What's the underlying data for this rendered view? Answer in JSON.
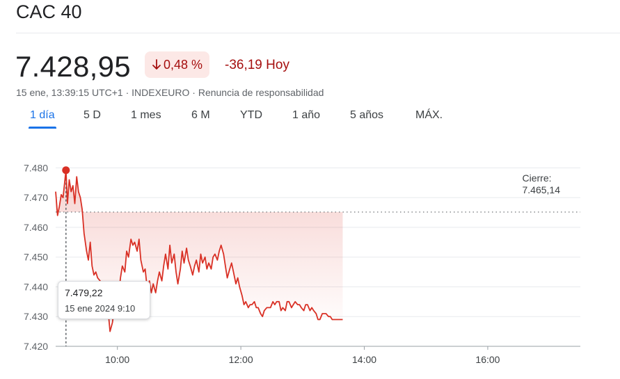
{
  "header": {
    "title": "CAC 40",
    "price": "7.428,95",
    "change_pct": "0,48 %",
    "change_abs": "-36,19 Hoy",
    "meta": "15 ene, 13:39:15 UTC+1 · INDEXEURO · Renuncia de responsabilidad"
  },
  "tabs": [
    {
      "label": "1 día",
      "active": true
    },
    {
      "label": "5 D",
      "active": false
    },
    {
      "label": "1 mes",
      "active": false
    },
    {
      "label": "6 M",
      "active": false
    },
    {
      "label": "YTD",
      "active": false
    },
    {
      "label": "1 año",
      "active": false
    },
    {
      "label": "5 años",
      "active": false
    },
    {
      "label": "MÁX.",
      "active": false
    }
  ],
  "tooltip": {
    "value": "7.479,22",
    "date": "15 ene 2024 9:10"
  },
  "close": {
    "label": "Cierre:",
    "value": "7.465,14"
  },
  "colors": {
    "line": "#d93025",
    "accent": "#1a73e8",
    "negative": "#a50e0e",
    "badge_bg": "#fce8e6"
  },
  "chart_data": {
    "type": "line",
    "x_unit": "hours",
    "xlim": [
      9.0,
      17.5
    ],
    "ylim": [
      7420,
      7485
    ],
    "x_ticks": [
      10,
      12,
      14,
      16
    ],
    "x_tick_labels": [
      "10:00",
      "12:00",
      "14:00",
      "16:00"
    ],
    "y_ticks": [
      7420,
      7430,
      7440,
      7450,
      7460,
      7470,
      7480
    ],
    "y_tick_labels": [
      "7.420",
      "7.430",
      "7.440",
      "7.450",
      "7.460",
      "7.470",
      "7.480"
    ],
    "previous_close": 7465.14,
    "highlight_point": {
      "x": 9.1667,
      "y": 7479.22
    },
    "grid": true,
    "series": [
      {
        "x": [
          9.0,
          9.03,
          9.06,
          9.09,
          9.12,
          9.1667,
          9.19,
          9.22,
          9.25,
          9.28,
          9.31,
          9.34,
          9.37,
          9.4,
          9.43,
          9.46,
          9.5,
          9.53,
          9.56,
          9.59,
          9.62,
          9.65,
          9.68,
          9.72,
          9.75,
          9.78,
          9.82,
          9.85,
          9.88,
          9.92,
          9.95,
          9.98,
          10.02,
          10.05,
          10.08,
          10.12,
          10.15,
          10.18,
          10.22,
          10.25,
          10.28,
          10.32,
          10.35,
          10.38,
          10.42,
          10.45,
          10.48,
          10.52,
          10.55,
          10.58,
          10.62,
          10.65,
          10.68,
          10.72,
          10.75,
          10.78,
          10.82,
          10.85,
          10.88,
          10.92,
          10.95,
          10.98,
          11.02,
          11.05,
          11.08,
          11.12,
          11.15,
          11.18,
          11.22,
          11.25,
          11.28,
          11.32,
          11.35,
          11.38,
          11.42,
          11.45,
          11.48,
          11.52,
          11.55,
          11.58,
          11.62,
          11.65,
          11.68,
          11.72,
          11.75,
          11.78,
          11.82,
          11.85,
          11.88,
          11.92,
          11.95,
          11.98,
          12.02,
          12.05,
          12.08,
          12.12,
          12.15,
          12.18,
          12.22,
          12.25,
          12.28,
          12.32,
          12.35,
          12.38,
          12.42,
          12.45,
          12.48,
          12.52,
          12.55,
          12.58,
          12.62,
          12.65,
          12.68,
          12.72,
          12.75,
          12.78,
          12.82,
          12.85,
          12.88,
          12.92,
          12.95,
          12.98,
          13.02,
          13.05,
          13.08,
          13.12,
          13.15,
          13.18,
          13.22,
          13.25,
          13.28,
          13.32,
          13.35,
          13.38,
          13.42,
          13.45,
          13.48,
          13.52,
          13.55,
          13.58,
          13.62,
          13.65
        ],
        "y": [
          7472,
          7464,
          7467,
          7471,
          7470,
          7479.2,
          7468,
          7476,
          7472,
          7474,
          7468,
          7477,
          7472,
          7470,
          7466,
          7458,
          7452,
          7449,
          7455,
          7447,
          7444,
          7445,
          7443,
          7442,
          7438,
          7436,
          7431,
          7432,
          7425,
          7428,
          7433,
          7430,
          7437,
          7443,
          7447,
          7445,
          7452,
          7450,
          7456,
          7454,
          7455,
          7452,
          7456,
          7449,
          7445,
          7446,
          7440,
          7442,
          7438,
          7441,
          7438,
          7442,
          7445,
          7442,
          7447,
          7451,
          7446,
          7454,
          7448,
          7451,
          7445,
          7441,
          7446,
          7452,
          7448,
          7453,
          7449,
          7447,
          7444,
          7447,
          7449,
          7445,
          7451,
          7448,
          7450,
          7446,
          7448,
          7446,
          7450,
          7451,
          7449,
          7452,
          7454,
          7451,
          7447,
          7443,
          7446,
          7448,
          7445,
          7441,
          7443,
          7440,
          7437,
          7434,
          7435,
          7433,
          7434,
          7434,
          7435,
          7433,
          7433,
          7431,
          7430,
          7432,
          7433,
          7433,
          7433,
          7435,
          7434,
          7435,
          7435,
          7432,
          7433,
          7432,
          7435,
          7435,
          7433,
          7434,
          7435,
          7434,
          7434,
          7433,
          7432,
          7434,
          7434,
          7432,
          7433,
          7432,
          7431,
          7429,
          7429,
          7431,
          7431,
          7431,
          7430,
          7430,
          7429,
          7429,
          7429,
          7429,
          7429,
          7429
        ]
      }
    ]
  }
}
